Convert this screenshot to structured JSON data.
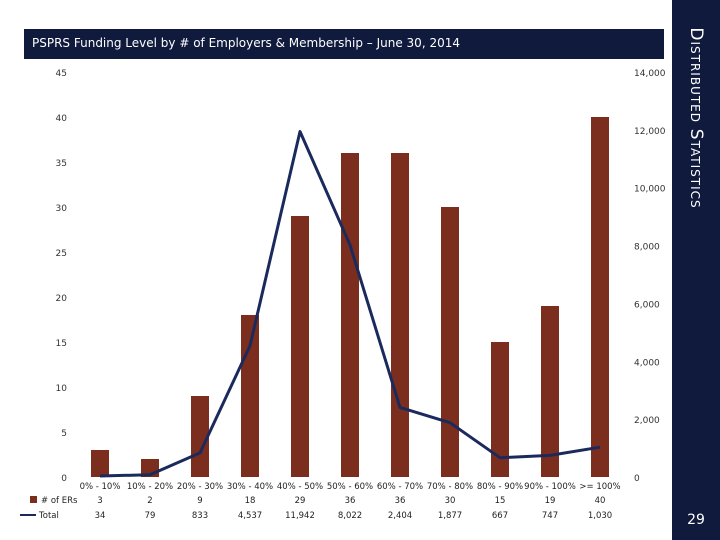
{
  "header": {
    "title": "PSPRS Funding Level by # of Employers & Membership – June 30, 2014"
  },
  "side_title": "Distributed Statistics",
  "page_number": "29",
  "colors": {
    "bar": "#7b2d1e",
    "line": "#1b2a5c",
    "banner": "#0f1a3d"
  },
  "chart_data": {
    "type": "bar",
    "title": "PSPRS Funding Level by # of Employers & Membership – June 30, 2014",
    "categories": [
      "0% - 10%",
      "10% - 20%",
      "20% - 30%",
      "30% - 40%",
      "40% - 50%",
      "50% - 60%",
      "60% - 70%",
      "70% - 80%",
      "80% - 90%",
      "90% - 100%",
      ">= 100%"
    ],
    "series": [
      {
        "name": "# of ERs",
        "type": "bar",
        "axis": "left",
        "values": [
          3,
          2,
          9,
          18,
          29,
          36,
          36,
          30,
          15,
          19,
          40
        ],
        "labels": [
          "3",
          "2",
          "9",
          "18",
          "29",
          "36",
          "36",
          "30",
          "15",
          "19",
          "40"
        ]
      },
      {
        "name": "Total",
        "type": "line",
        "axis": "right",
        "values": [
          34,
          79,
          833,
          4537,
          11942,
          8022,
          2404,
          1877,
          667,
          747,
          1030
        ],
        "labels": [
          "34",
          "79",
          "833",
          "4,537",
          "11,942",
          "8,022",
          "2,404",
          "1,877",
          "667",
          "747",
          "1,030"
        ]
      }
    ],
    "y_left": {
      "lim": [
        0,
        45
      ],
      "ticks": [
        "0",
        "5",
        "10",
        "15",
        "20",
        "25",
        "30",
        "35",
        "40",
        "45"
      ]
    },
    "y_right": {
      "lim": [
        0,
        14000
      ],
      "ticks": [
        "0",
        "2,000",
        "4,000",
        "6,000",
        "8,000",
        "10,000",
        "12,000",
        "14,000"
      ]
    },
    "grid": false,
    "legend": "data-table-below"
  }
}
